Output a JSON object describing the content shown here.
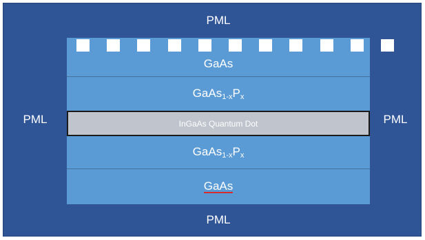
{
  "labels": {
    "pml_top": "PML",
    "pml_bottom": "PML",
    "pml_left": "PML",
    "pml_right": "PML",
    "gaas_top": "GaAs",
    "gaasp_top_base": "GaAs",
    "gaasp_top_sub": "1-x",
    "gaasp_top_p": "P",
    "gaasp_top_p_sub": "x",
    "quantum_dot": "InGaAs Quantum Dot",
    "gaasp_bottom_base": "GaAs",
    "gaasp_bottom_sub": "1-x",
    "gaasp_bottom_p": "P",
    "gaasp_bottom_p_sub": "x",
    "gaas_bottom": "GaAs"
  },
  "colors": {
    "pml": "#2f5597",
    "layer": "#5b9bd5",
    "quantum_dot": "#c0c4cc",
    "grating": "#ffffff"
  },
  "grating": {
    "tooth_count": 11
  }
}
